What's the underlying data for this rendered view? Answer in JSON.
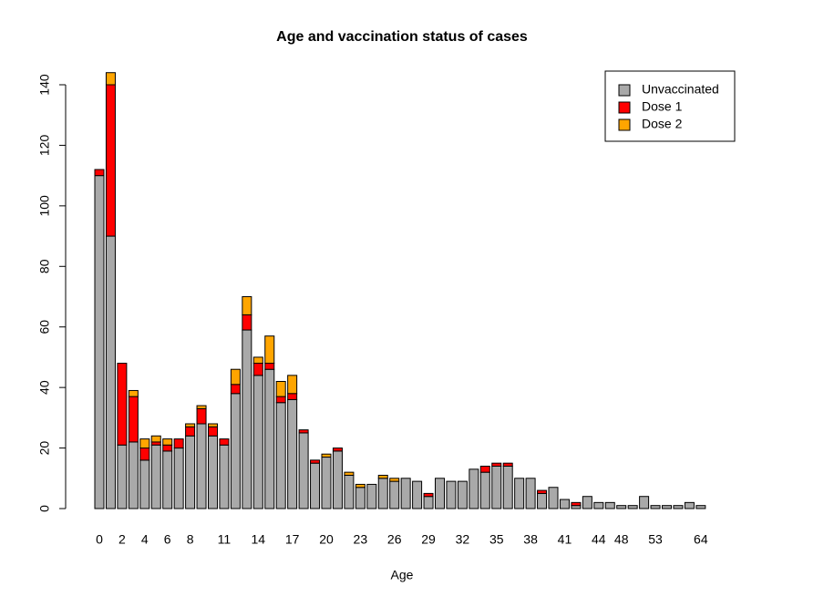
{
  "chart_data": {
    "type": "stacked-bar",
    "title": "Age and vaccination status of cases",
    "xlabel": "Age",
    "categories": [
      "0",
      null,
      "2",
      null,
      "4",
      null,
      "6",
      null,
      "8",
      null,
      null,
      "11",
      null,
      null,
      "14",
      null,
      null,
      "17",
      null,
      null,
      "20",
      null,
      null,
      "23",
      null,
      null,
      "26",
      null,
      null,
      "29",
      null,
      null,
      "32",
      null,
      null,
      "35",
      null,
      null,
      "38",
      null,
      null,
      "41",
      null,
      null,
      "44",
      null,
      "48",
      null,
      null,
      "53",
      null,
      null,
      null,
      "64"
    ],
    "series": [
      {
        "name": "Unvaccinated",
        "color": "#a9a9a9",
        "values": [
          110,
          90,
          21,
          22,
          16,
          21,
          19,
          20,
          24,
          28,
          24,
          21,
          38,
          59,
          44,
          46,
          35,
          36,
          25,
          15,
          17,
          19,
          11,
          7,
          8,
          10,
          9,
          10,
          9,
          4,
          10,
          9,
          9,
          13,
          12,
          14,
          14,
          10,
          10,
          5,
          7,
          3,
          1,
          4,
          2,
          2,
          1,
          1,
          4,
          1,
          1,
          1,
          2,
          1
        ]
      },
      {
        "name": "Dose 1",
        "color": "#ff0000",
        "values": [
          2,
          50,
          27,
          15,
          4,
          1,
          2,
          3,
          3,
          5,
          3,
          2,
          3,
          5,
          4,
          2,
          2,
          2,
          1,
          1,
          0,
          1,
          0,
          0,
          0,
          0,
          0,
          0,
          0,
          1,
          0,
          0,
          0,
          0,
          2,
          1,
          1,
          0,
          0,
          1,
          0,
          0,
          1,
          0,
          0,
          0,
          0,
          0,
          0,
          0,
          0,
          0,
          0,
          0
        ]
      },
      {
        "name": "Dose 2",
        "color": "#ffa500",
        "values": [
          0,
          4,
          0,
          2,
          3,
          2,
          2,
          0,
          1,
          1,
          1,
          0,
          5,
          6,
          2,
          9,
          5,
          6,
          0,
          0,
          1,
          0,
          1,
          1,
          0,
          1,
          1,
          0,
          0,
          0,
          0,
          0,
          0,
          0,
          0,
          0,
          0,
          0,
          0,
          0,
          0,
          0,
          0,
          0,
          0,
          0,
          0,
          0,
          0,
          0,
          0,
          0,
          0,
          0
        ]
      }
    ],
    "ylim": [
      0,
      140
    ],
    "yticks": [
      0,
      20,
      40,
      60,
      80,
      100,
      120,
      140
    ],
    "legend": "top-right"
  }
}
